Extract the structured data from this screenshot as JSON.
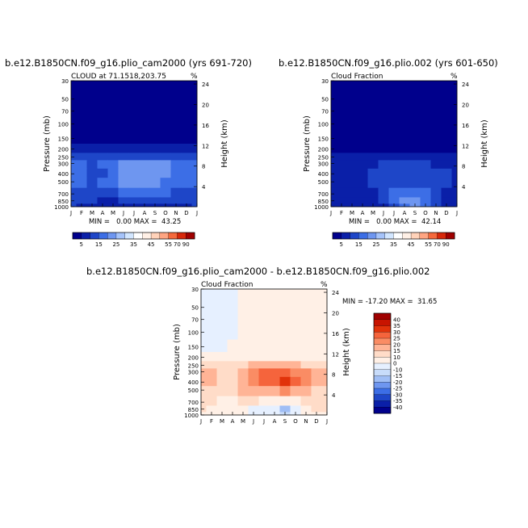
{
  "months": [
    "J",
    "F",
    "M",
    "A",
    "M",
    "J",
    "J",
    "A",
    "S",
    "O",
    "N",
    "D",
    "J"
  ],
  "pressure_ticks": [
    "30",
    "50",
    "70",
    "100",
    "150",
    "200",
    "250",
    "300",
    "400",
    "500",
    "700",
    "850",
    "1000"
  ],
  "panels": [
    {
      "title": "b.e12.B1850CN.f09_g16.plio_cam2000 (yrs 691-720)",
      "subtitle": "CLOUD at 71.1518,203.75",
      "units": "%",
      "ylabel": "Pressure (mb)",
      "ylabel2": "Height (km)",
      "height_ticks": [
        "24",
        "20",
        "16",
        "12",
        "8",
        "4"
      ],
      "stats": "MIN =   0.00 MAX =  43.25",
      "colorbar_labels": [
        "5",
        "15",
        "25",
        "35",
        "45",
        "55",
        "70",
        "90"
      ]
    },
    {
      "title": "b.e12.B1850CN.f09_g16.plio.002 (yrs 601-650)",
      "subtitle": "Cloud Fraction",
      "units": "%",
      "ylabel": "Pressure (mb)",
      "ylabel2": "Height (km)",
      "height_ticks": [
        "24",
        "20",
        "16",
        "12",
        "8",
        "4"
      ],
      "stats": "MIN =   0.00 MAX =  42.14",
      "colorbar_labels": [
        "5",
        "15",
        "25",
        "35",
        "45",
        "55",
        "70",
        "90"
      ]
    },
    {
      "title": "b.e12.B1850CN.f09_g16.plio_cam2000 - b.e12.B1850CN.f09_g16.plio.002",
      "subtitle": "Cloud Fraction",
      "units": "%",
      "ylabel": "Pressure (mb)",
      "ylabel2": "Height (km)",
      "height_ticks": [
        "24",
        "20",
        "16",
        "12",
        "8",
        "4"
      ],
      "stats": "MIN = -17.20 MAX =  31.65",
      "colorbar_labels": [
        "40",
        "35",
        "30",
        "25",
        "20",
        "15",
        "10",
        "0",
        "-10",
        "-15",
        "-20",
        "-25",
        "-30",
        "-35",
        "-40"
      ]
    }
  ],
  "colors": {
    "seq": [
      "#00008c",
      "#0a1fa8",
      "#1e46c8",
      "#3c6ee6",
      "#6e96f0",
      "#a5c3fa",
      "#d2e6ff",
      "#ffffff",
      "#fff0e6",
      "#ffd2b9",
      "#ffa582",
      "#f5693c",
      "#d7280a",
      "#a00000"
    ],
    "div": [
      "#a00000",
      "#c81400",
      "#e1320a",
      "#f5643c",
      "#fa8c64",
      "#ffb496",
      "#ffdcc8",
      "#fff0e6",
      "#e6f0ff",
      "#c8dcfa",
      "#a0bef5",
      "#6e96f0",
      "#3c6ee6",
      "#1e46c8",
      "#0a1fa8",
      "#00008c"
    ]
  },
  "chart_data": [
    {
      "type": "heatmap",
      "title": "b.e12.B1850CN.f09_g16.plio_cam2000 (yrs 691-720)",
      "subtitle": "CLOUD at 71.1518,203.75",
      "xlabel": "",
      "ylabel": "Pressure (mb)",
      "y2label": "Height (km)",
      "x": [
        "J",
        "F",
        "M",
        "A",
        "M",
        "J",
        "J",
        "A",
        "S",
        "O",
        "N",
        "D",
        "J"
      ],
      "y": [
        30,
        50,
        70,
        100,
        150,
        200,
        250,
        300,
        400,
        500,
        700,
        850,
        1000
      ],
      "y_scale": "log",
      "y_reversed": true,
      "values": [
        [
          0,
          0,
          0,
          0,
          0,
          0,
          0,
          0,
          0,
          0,
          0,
          0,
          0
        ],
        [
          0,
          0,
          0,
          0,
          0,
          0,
          0,
          0,
          0,
          0,
          0,
          0,
          0
        ],
        [
          0,
          0,
          0,
          0,
          0,
          0,
          0,
          0,
          0,
          0,
          0,
          0,
          0
        ],
        [
          0,
          0,
          0,
          0,
          0,
          0,
          0,
          0,
          0,
          0,
          0,
          0,
          0
        ],
        [
          1,
          1,
          1,
          1,
          1,
          1,
          1,
          1,
          1,
          1,
          1,
          1,
          1
        ],
        [
          10,
          8,
          6,
          7,
          9,
          8,
          7,
          8,
          9,
          10,
          11,
          12,
          10
        ],
        [
          20,
          18,
          16,
          17,
          20,
          22,
          22,
          21,
          22,
          24,
          22,
          20,
          20
        ],
        [
          30,
          28,
          22,
          25,
          30,
          35,
          38,
          38,
          38,
          35,
          32,
          30,
          30
        ],
        [
          30,
          28,
          20,
          24,
          33,
          40,
          42,
          43,
          42,
          38,
          34,
          32,
          30
        ],
        [
          28,
          26,
          22,
          25,
          32,
          36,
          38,
          38,
          35,
          32,
          28,
          26,
          28
        ],
        [
          24,
          20,
          18,
          16,
          22,
          30,
          34,
          32,
          30,
          26,
          22,
          20,
          24
        ],
        [
          20,
          18,
          15,
          12,
          14,
          20,
          22,
          24,
          22,
          20,
          18,
          16,
          20
        ],
        [
          16,
          14,
          12,
          10,
          10,
          12,
          14,
          14,
          14,
          14,
          14,
          14,
          16
        ]
      ],
      "levels": [
        5,
        15,
        25,
        35,
        45,
        55,
        70,
        90
      ],
      "units": "%",
      "min": 0.0,
      "max": 43.25
    },
    {
      "type": "heatmap",
      "title": "b.e12.B1850CN.f09_g16.plio.002 (yrs 601-650)",
      "subtitle": "Cloud Fraction",
      "xlabel": "",
      "ylabel": "Pressure (mb)",
      "y2label": "Height (km)",
      "x": [
        "J",
        "F",
        "M",
        "A",
        "M",
        "J",
        "J",
        "A",
        "S",
        "O",
        "N",
        "D",
        "J"
      ],
      "y": [
        30,
        50,
        70,
        100,
        150,
        200,
        250,
        300,
        400,
        500,
        700,
        850,
        1000
      ],
      "y_scale": "log",
      "y_reversed": true,
      "values": [
        [
          0,
          0,
          0,
          0,
          0,
          0,
          0,
          0,
          0,
          0,
          0,
          0,
          0
        ],
        [
          0,
          0,
          0,
          0,
          0,
          0,
          0,
          0,
          0,
          0,
          0,
          0,
          0
        ],
        [
          0,
          0,
          0,
          0,
          0,
          0,
          0,
          0,
          0,
          0,
          0,
          0,
          0
        ],
        [
          0,
          0,
          0,
          0,
          0,
          0,
          0,
          0,
          0,
          0,
          0,
          0,
          0
        ],
        [
          0,
          0,
          0,
          0,
          0,
          0,
          0,
          0,
          0,
          0,
          0,
          0,
          0
        ],
        [
          3,
          3,
          3,
          3,
          3,
          3,
          3,
          3,
          3,
          3,
          3,
          3,
          3
        ],
        [
          8,
          7,
          6,
          6,
          7,
          8,
          8,
          8,
          8,
          9,
          9,
          9,
          8
        ],
        [
          12,
          11,
          10,
          10,
          14,
          16,
          18,
          18,
          17,
          16,
          14,
          13,
          12
        ],
        [
          14,
          13,
          12,
          12,
          16,
          20,
          22,
          22,
          21,
          20,
          17,
          15,
          14
        ],
        [
          14,
          13,
          12,
          12,
          16,
          22,
          24,
          24,
          22,
          20,
          17,
          15,
          14
        ],
        [
          12,
          10,
          9,
          8,
          12,
          20,
          26,
          30,
          30,
          25,
          18,
          14,
          12
        ],
        [
          10,
          9,
          8,
          8,
          10,
          18,
          28,
          40,
          42,
          34,
          20,
          12,
          10
        ],
        [
          8,
          7,
          6,
          6,
          8,
          14,
          22,
          34,
          38,
          28,
          16,
          10,
          8
        ]
      ],
      "levels": [
        5,
        15,
        25,
        35,
        45,
        55,
        70,
        90
      ],
      "units": "%",
      "min": 0.0,
      "max": 42.14
    },
    {
      "type": "heatmap",
      "title": "b.e12.B1850CN.f09_g16.plio_cam2000 - b.e12.B1850CN.f09_g16.plio.002",
      "subtitle": "Cloud Fraction",
      "xlabel": "",
      "ylabel": "Pressure (mb)",
      "y2label": "Height (km)",
      "x": [
        "J",
        "F",
        "M",
        "A",
        "M",
        "J",
        "J",
        "A",
        "S",
        "O",
        "N",
        "D",
        "J"
      ],
      "y": [
        30,
        50,
        70,
        100,
        150,
        200,
        250,
        300,
        400,
        500,
        700,
        850,
        1000
      ],
      "y_scale": "log",
      "y_reversed": true,
      "values": [
        [
          -2,
          -2,
          -2,
          -1,
          1,
          1,
          1,
          1,
          1,
          1,
          1,
          1,
          1
        ],
        [
          -2,
          -2,
          -2,
          -1,
          1,
          1,
          1,
          1,
          1,
          1,
          1,
          1,
          1
        ],
        [
          -2,
          -2,
          -2,
          -1,
          1,
          1,
          1,
          1,
          1,
          1,
          1,
          1,
          1
        ],
        [
          -2,
          -2,
          -2,
          -1,
          1,
          1,
          1,
          1,
          1,
          1,
          1,
          1,
          1
        ],
        [
          -2,
          -2,
          -1,
          1,
          1,
          1,
          1,
          1,
          1,
          1,
          1,
          1,
          1
        ],
        [
          6,
          5,
          4,
          4,
          5,
          6,
          7,
          7,
          6,
          6,
          6,
          7,
          6
        ],
        [
          12,
          11,
          12,
          12,
          14,
          15,
          16,
          16,
          15,
          15,
          13,
          12,
          12
        ],
        [
          17,
          16,
          12,
          14,
          18,
          22,
          25,
          26,
          27,
          24,
          20,
          17,
          17
        ],
        [
          16,
          15,
          10,
          13,
          18,
          22,
          26,
          28,
          31,
          25,
          20,
          17,
          16
        ],
        [
          14,
          13,
          10,
          12,
          16,
          16,
          17,
          18,
          20,
          18,
          15,
          13,
          14
        ],
        [
          12,
          10,
          9,
          8,
          10,
          10,
          8,
          6,
          6,
          8,
          12,
          14,
          12
        ],
        [
          10,
          9,
          8,
          6,
          4,
          -4,
          -6,
          -10,
          -16,
          -8,
          8,
          12,
          10
        ],
        [
          8,
          7,
          6,
          4,
          2,
          -3,
          -6,
          -8,
          -12,
          -6,
          4,
          8,
          8
        ]
      ],
      "levels": [
        -40,
        -35,
        -30,
        -25,
        -20,
        -15,
        -10,
        0,
        10,
        15,
        20,
        25,
        30,
        35,
        40
      ],
      "units": "%",
      "min": -17.2,
      "max": 31.65
    }
  ]
}
